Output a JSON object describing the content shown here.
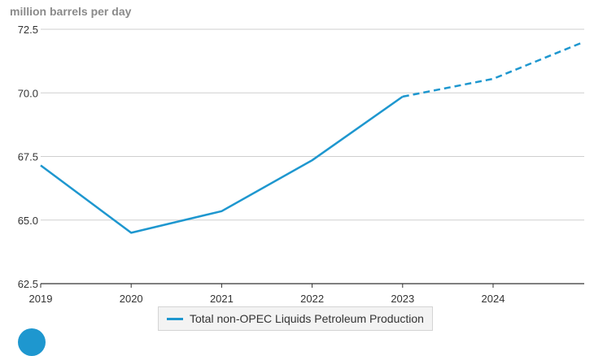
{
  "chart_data": {
    "type": "line",
    "ylabel": "million barrels per day",
    "x": [
      "2019",
      "2020",
      "2021",
      "2022",
      "2023",
      "2024",
      "2025"
    ],
    "x_tick_labels": [
      "2019",
      "2020",
      "2021",
      "2022",
      "2023",
      "2024"
    ],
    "y_ticks": [
      "62.5",
      "65.0",
      "67.5",
      "70.0",
      "72.5"
    ],
    "ylim": [
      62.5,
      72.5
    ],
    "series": [
      {
        "name": "Total non-OPEC Liquids Petroleum Production",
        "color": "#1e97cf",
        "values": [
          67.15,
          64.5,
          65.35,
          67.35,
          69.85,
          70.55,
          72.0
        ],
        "forecast_from": "2023",
        "forecast_style": "dashed"
      }
    ],
    "grid": true,
    "legend_position": "bottom-center"
  }
}
